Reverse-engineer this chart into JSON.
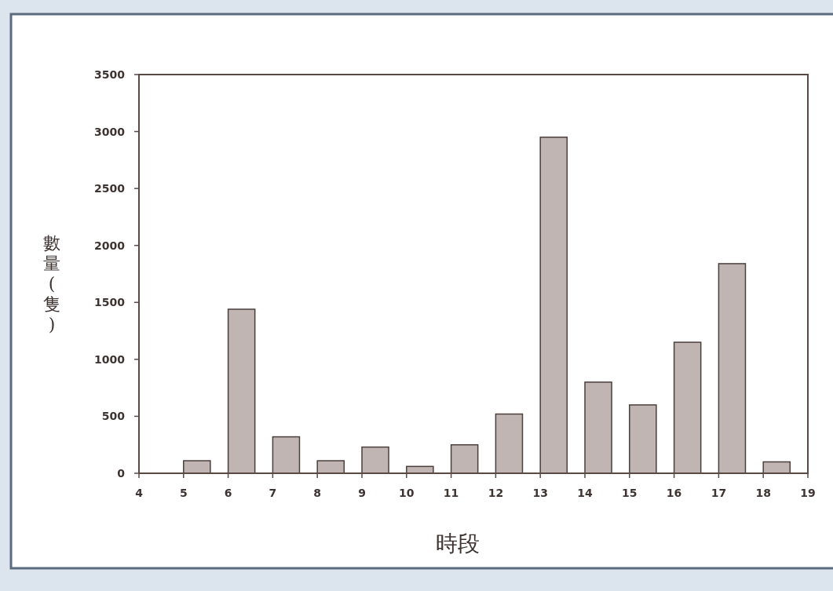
{
  "chart_data": {
    "type": "bar",
    "xlabel": "時段",
    "ylabel": "數量(隻)",
    "x": [
      5.3,
      6.3,
      7.3,
      8.3,
      9.3,
      10.3,
      11.3,
      12.3,
      13.3,
      14.3,
      15.3,
      16.3,
      17.3,
      18.3
    ],
    "values": [
      110,
      1440,
      320,
      110,
      230,
      60,
      250,
      520,
      2950,
      800,
      600,
      1150,
      1840,
      100
    ],
    "color": "#c0b5b2",
    "xlim": [
      4,
      19
    ],
    "xticks": [
      4,
      5,
      6,
      7,
      8,
      9,
      10,
      11,
      12,
      13,
      14,
      15,
      16,
      17,
      18,
      19
    ],
    "ylim": [
      0,
      3500
    ],
    "yticks": [
      0,
      500,
      1000,
      1500,
      2000,
      2500,
      3000,
      3500
    ],
    "grid": false
  }
}
